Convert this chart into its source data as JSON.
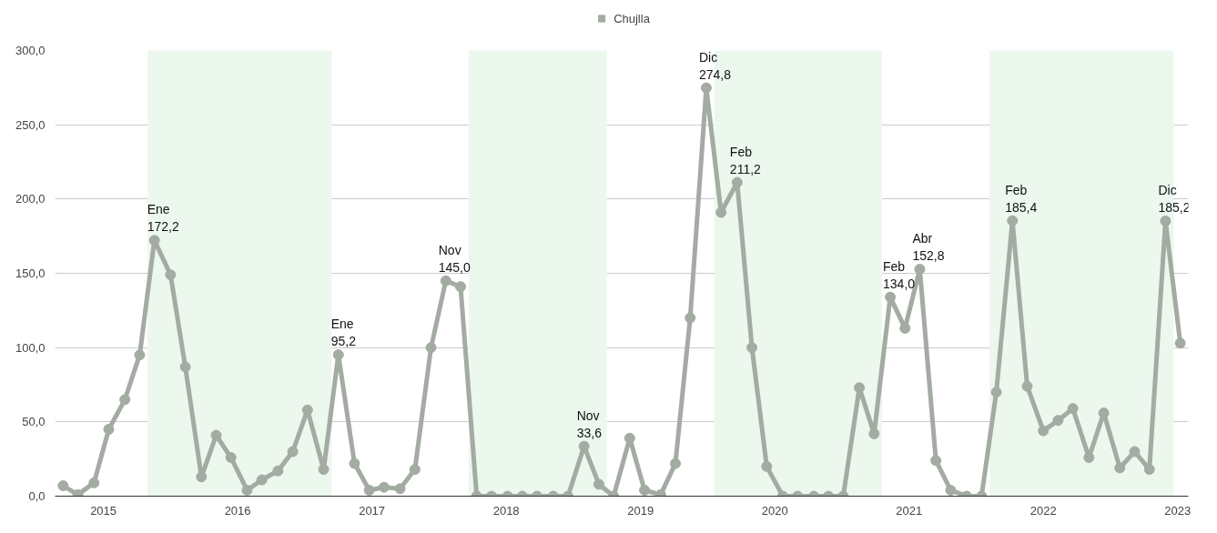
{
  "chart_data": {
    "type": "line",
    "x": [
      2014.7,
      2014.81,
      2014.93,
      2015.04,
      2015.16,
      2015.27,
      2015.38,
      2015.5,
      2015.61,
      2015.73,
      2015.84,
      2015.95,
      2016.07,
      2016.18,
      2016.3,
      2016.41,
      2016.52,
      2016.64,
      2016.75,
      2016.87,
      2016.98,
      2017.09,
      2017.21,
      2017.32,
      2017.44,
      2017.55,
      2017.66,
      2017.78,
      2017.89,
      2018.01,
      2018.12,
      2018.23,
      2018.35,
      2018.46,
      2018.58,
      2018.69,
      2018.8,
      2018.92,
      2019.03,
      2019.15,
      2019.26,
      2019.37,
      2019.49,
      2019.6,
      2019.72,
      2019.83,
      2019.94,
      2020.06,
      2020.17,
      2020.29,
      2020.4,
      2020.51,
      2020.63,
      2020.74,
      2020.86,
      2020.97,
      2021.08,
      2021.2,
      2021.31,
      2021.43,
      2021.54,
      2021.65,
      2021.77,
      2021.88,
      2022.0,
      2022.11,
      2022.22,
      2022.34,
      2022.45,
      2022.57,
      2022.68,
      2022.79,
      2022.91,
      2023.02
    ],
    "series": [
      {
        "name": "Chujlla",
        "color": "#a3aba2",
        "values": [
          7,
          1,
          9,
          45,
          65,
          95,
          172.2,
          149,
          87,
          13,
          41,
          26,
          4,
          11,
          17,
          30,
          58,
          18,
          95.2,
          22,
          4,
          6,
          5,
          18,
          100,
          145.0,
          141,
          0,
          0,
          0,
          0,
          0,
          0,
          0,
          33.6,
          8,
          0,
          39,
          4,
          1,
          22,
          120,
          274.8,
          191,
          211.2,
          100,
          20,
          0,
          0,
          0,
          0,
          0,
          73,
          42,
          134.0,
          113,
          152.8,
          24,
          4,
          0,
          0,
          70,
          185.4,
          74,
          44,
          51,
          59,
          26,
          56,
          19,
          30,
          18,
          185.2,
          103
        ]
      }
    ],
    "xlim": [
      2014.64,
      2023.08
    ],
    "xticks": [
      2015,
      2016,
      2017,
      2018,
      2019,
      2020,
      2021,
      2022,
      2023
    ],
    "ylim": [
      0,
      300
    ],
    "yticks": [
      {
        "value": 0,
        "label": "0,0"
      },
      {
        "value": 50,
        "label": "50,0"
      },
      {
        "value": 100,
        "label": "100,0"
      },
      {
        "value": 150,
        "label": "150,0"
      },
      {
        "value": 200,
        "label": "200,0"
      },
      {
        "value": 250,
        "label": "250,0"
      },
      {
        "value": 300,
        "label": "300,0"
      }
    ],
    "bands": [
      {
        "axis": "x",
        "from": 2015.33,
        "to": 2016.7,
        "color": "#ecf7ee"
      },
      {
        "axis": "x",
        "from": 2017.72,
        "to": 2018.75,
        "color": "#ecf7ee"
      },
      {
        "axis": "x",
        "from": 2019.55,
        "to": 2020.8,
        "color": "#ecf7ee"
      },
      {
        "axis": "x",
        "from": 2021.6,
        "to": 2022.97,
        "color": "#ecf7ee"
      }
    ],
    "annotations": [
      {
        "text": "Ene 172,2",
        "x": 2015.38,
        "y": 172.2
      },
      {
        "text": "Ene 95,2",
        "x": 2016.75,
        "y": 95.2
      },
      {
        "text": "Nov 145,0",
        "x": 2017.55,
        "y": 145.0
      },
      {
        "text": "Nov 33,6",
        "x": 2018.58,
        "y": 33.6
      },
      {
        "text": "Dic 274,8",
        "x": 2019.49,
        "y": 274.8
      },
      {
        "text": "Feb 211,2",
        "x": 2019.72,
        "y": 211.2
      },
      {
        "text": "Feb 134,0",
        "x": 2020.86,
        "y": 134.0
      },
      {
        "text": "Abr 152,8",
        "x": 2021.08,
        "y": 152.8
      },
      {
        "text": "Feb 185,4",
        "x": 2021.77,
        "y": 185.4
      },
      {
        "text": "Dic 185,2",
        "x": 2022.91,
        "y": 185.2
      }
    ],
    "grid": "y",
    "legend": "top",
    "marker": "circle",
    "line_style": "solid"
  }
}
